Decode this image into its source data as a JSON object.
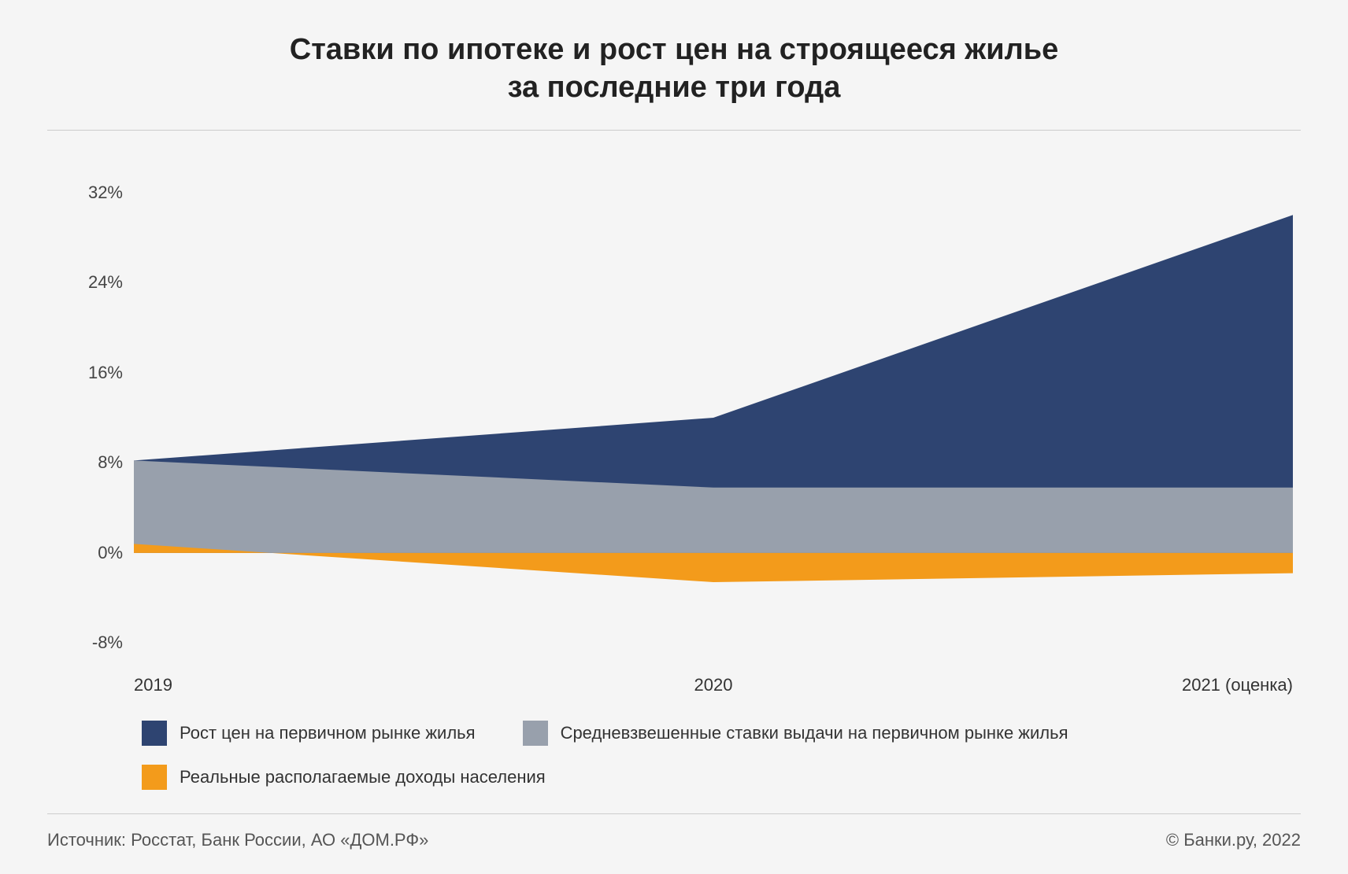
{
  "title_line1": "Ставки по ипотеке и рост цен на строящееся жилье",
  "title_line2": "за последние три года",
  "chart": {
    "type": "area",
    "background_color": "#f5f5f5",
    "x_categories": [
      "2019",
      "2020",
      "2021 (оценка)"
    ],
    "y_ticks": [
      -8,
      0,
      8,
      16,
      24,
      32
    ],
    "y_tick_labels": [
      "-8%",
      "0%",
      "8%",
      "16%",
      "24%",
      "32%"
    ],
    "ylim": [
      -10,
      34
    ],
    "axis_fontsize": 22,
    "series": [
      {
        "key": "prices",
        "label": "Рост цен на первичном рынке жилья",
        "color": "#2e4471",
        "values": [
          8.2,
          12.0,
          30.0
        ],
        "baseline": 0
      },
      {
        "key": "rates",
        "label": "Средневзвешенные ставки выдачи на первичном рынке жилья",
        "color": "#98a0ac",
        "values": [
          8.2,
          5.8,
          5.8
        ],
        "baseline": 0
      },
      {
        "key": "income",
        "label": "Реальные располагаемые доходы населения",
        "color": "#f39b1b",
        "values": [
          0.8,
          -2.6,
          -1.8
        ],
        "baseline": 0
      }
    ],
    "rule_color": "#cccccc",
    "baseline_color": "#dddddd"
  },
  "source_label": "Источник: Росстат, Банк России, АО «ДОМ.РФ»",
  "copyright_label": "© Банки.ру, 2022"
}
